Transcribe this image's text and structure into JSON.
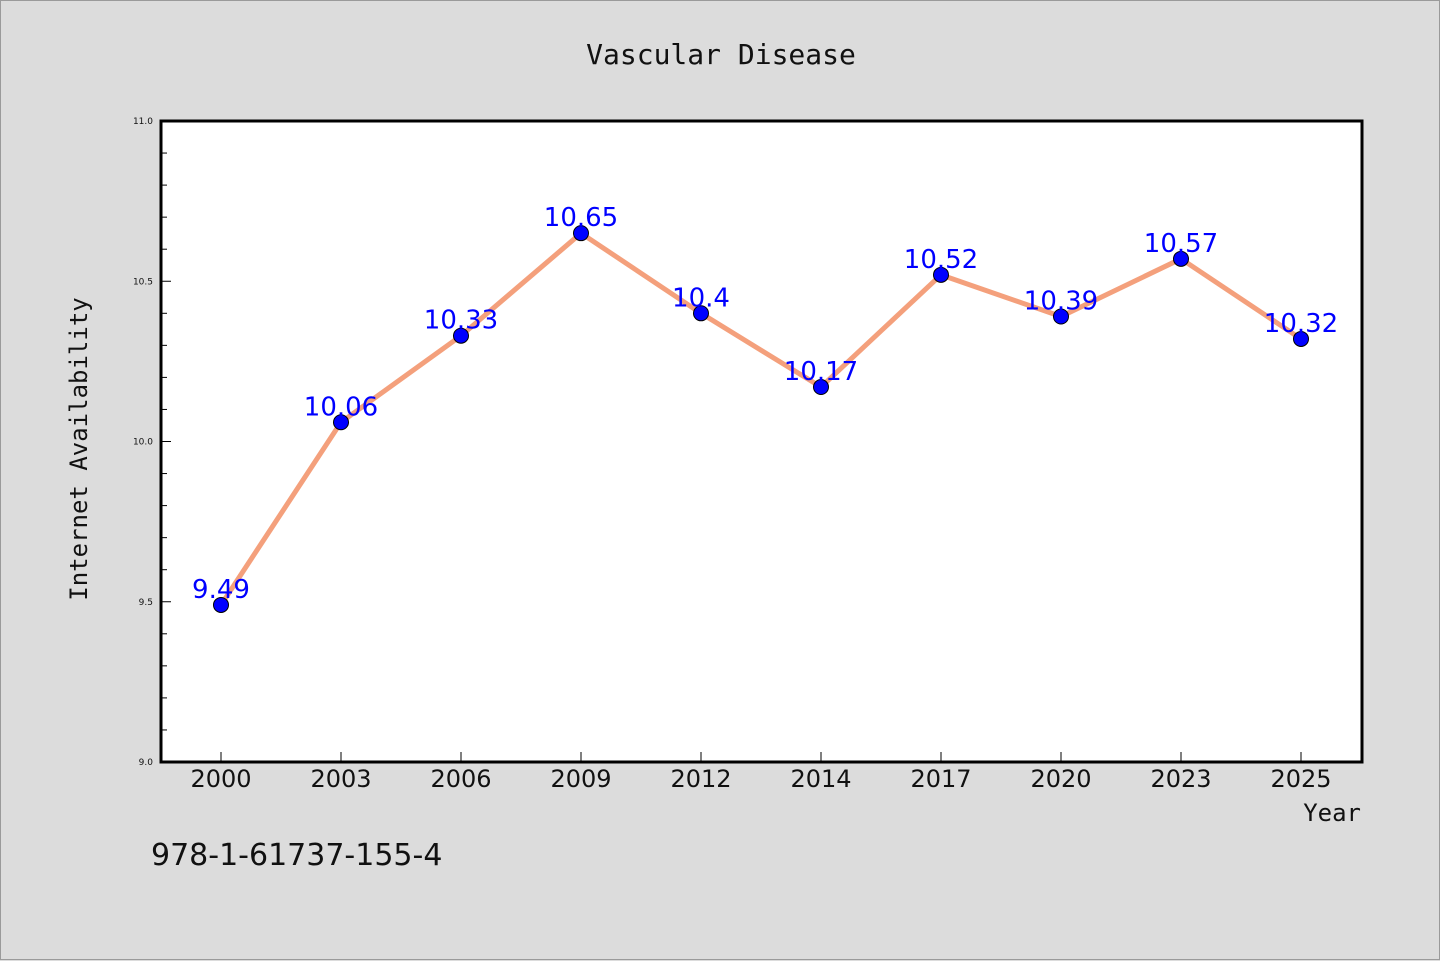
{
  "chart_data": {
    "type": "line",
    "title": "Vascular Disease",
    "xlabel": "Year",
    "ylabel": "Internet Availability",
    "categories": [
      "2000",
      "2003",
      "2006",
      "2009",
      "2012",
      "2014",
      "2017",
      "2020",
      "2023",
      "2025"
    ],
    "series": [
      {
        "values": [
          9.49,
          10.06,
          10.33,
          10.65,
          10.4,
          10.17,
          10.52,
          10.39,
          10.57,
          10.32
        ],
        "data_labels": [
          "9.49",
          "10.06",
          "10.33",
          "10.65",
          "10.4",
          "10.17",
          "10.52",
          "10.39",
          "10.57",
          "10.32"
        ],
        "line_color": "#f4a07c",
        "marker_color": "#0000ff"
      }
    ],
    "ylim": [
      9.0,
      11.0
    ],
    "yticks": [
      "9.0",
      "9.5",
      "10.0",
      "10.5",
      "11.0"
    ],
    "grid": false,
    "legend": "none"
  },
  "footnote": "978-1-61737-155-4",
  "colors": {
    "background": "#dcdcdc",
    "plot_background": "#ffffff",
    "label_color": "#0000ff"
  }
}
